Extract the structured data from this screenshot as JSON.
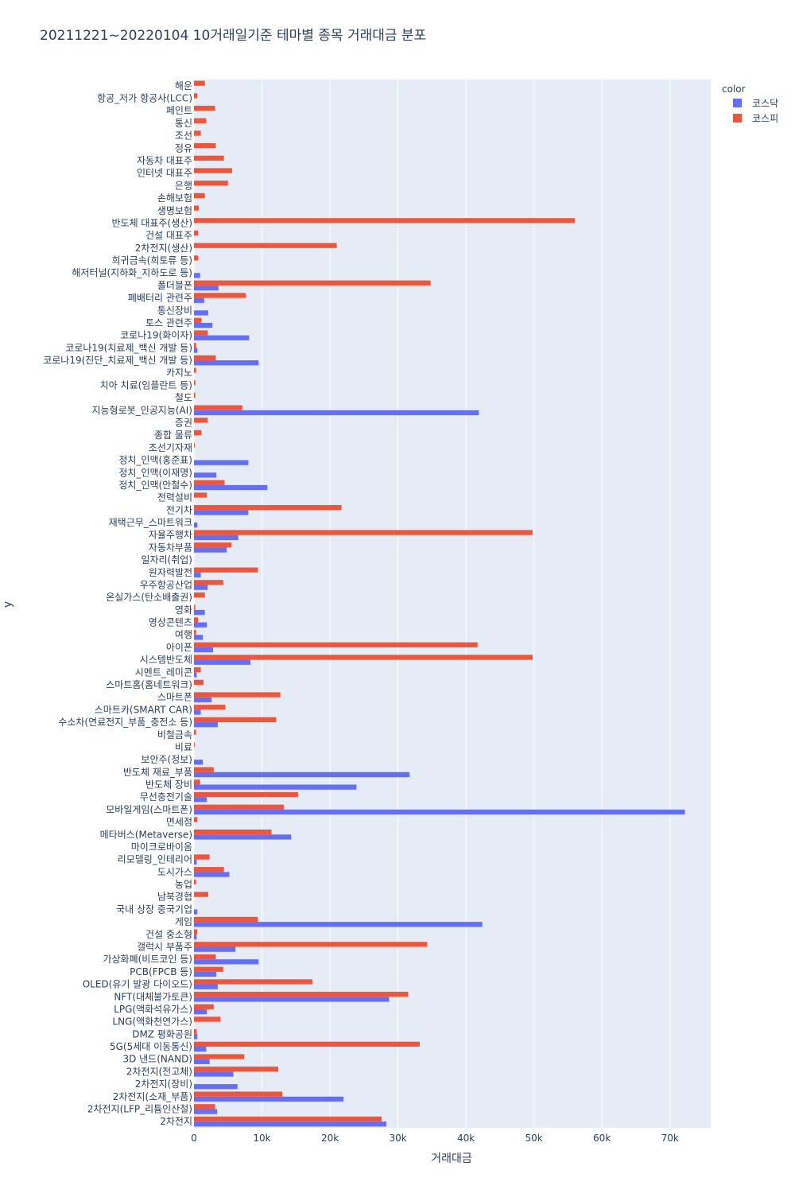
{
  "chart_data": {
    "type": "bar",
    "orientation": "horizontal",
    "barmode": "group",
    "title": "20211221~20220104 10거래일기준 테마별 종목 거래대금 분포",
    "xlabel": "거래대금",
    "ylabel": "y",
    "xlim": [
      0,
      76000
    ],
    "x_ticks": [
      0,
      10000,
      20000,
      30000,
      40000,
      50000,
      60000,
      70000
    ],
    "x_tick_labels": [
      "0",
      "10k",
      "20k",
      "30k",
      "40k",
      "50k",
      "60k",
      "70k"
    ],
    "grid": true,
    "legend": {
      "title": "color",
      "position": "top-right"
    },
    "colors": {
      "kosdaq": "#636efa",
      "kospi": "#ef553b",
      "plot_bg": "#e5ecf6",
      "grid": "#ffffff",
      "text": "#2a3f5f"
    },
    "categories": [
      "해운",
      "항공_저가 항공사(LCC)",
      "페인트",
      "통신",
      "조선",
      "정유",
      "자동차 대표주",
      "인터넷 대표주",
      "은행",
      "손해보험",
      "생명보험",
      "반도체 대표주(생산)",
      "건설 대표주",
      "2차전지(생산)",
      "희귀금속(희토류 등)",
      "해저터널(지하화_지하도로 등)",
      "폴더블폰",
      "폐배터리 관련주",
      "통신장비",
      "토스 관련주",
      "코로나19(화이자)",
      "코로나19(치료제_백신 개발 등)",
      "코로나19(진단_치료제_백신 개발 등)",
      "카지노",
      "치아 치료(임플란트 등)",
      "철도",
      "지능형로봇_인공지능(AI)",
      "증권",
      "종합 물류",
      "조선기자재",
      "정치_인맥(홍준표)",
      "정치_인맥(이재명)",
      "정치_인맥(안철수)",
      "전력설비",
      "전기차",
      "재택근무_스마트워크",
      "자율주행차",
      "자동차부품",
      "일자리(취업)",
      "원자력발전",
      "우주항공산업",
      "온실가스(탄소배출권)",
      "영화",
      "영상콘텐츠",
      "여행",
      "아이폰",
      "시스템반도체",
      "시멘트_레미콘",
      "스마트홈(홈네트워크)",
      "스마트폰",
      "스마트카(SMART CAR)",
      "수소차(연료전지_부품_충전소 등)",
      "비철금속",
      "비료",
      "보안주(정보)",
      "반도체 재료_부품",
      "반도체 장비",
      "무선충전기술",
      "모바일게임(스마트폰)",
      "면세점",
      "메타버스(Metaverse)",
      "마이크로바이옴",
      "리모델링_인테리어",
      "도시가스",
      "농업",
      "남북경협",
      "국내 상장 중국기업",
      "게임",
      "건설 중소형",
      "갤럭시 부품주",
      "가상화폐(비트코인 등)",
      "PCB(FPCB 등)",
      "OLED(유기 발광 다이오드)",
      "NFT(대체불가토큰)",
      "LPG(액화석유가스)",
      "LNG(액화천연가스)",
      "DMZ 평화공원",
      "5G(5세대 이동통신)",
      "3D 낸드(NAND)",
      "2차전지(전고체)",
      "2차전지(장비)",
      "2차전지(소재_부품)",
      "2차전지(LFP_리튬인산철)",
      "2차전지"
    ],
    "series": [
      {
        "name": "코스닥",
        "values": [
          0,
          0,
          0,
          0,
          0,
          0,
          0,
          0,
          0,
          0,
          0,
          0,
          0,
          0,
          0,
          900,
          3600,
          1500,
          2100,
          2700,
          8100,
          500,
          9500,
          0,
          0,
          0,
          41900,
          0,
          0,
          0,
          8000,
          3300,
          10800,
          0,
          8000,
          500,
          6500,
          4800,
          0,
          1000,
          2000,
          0,
          1600,
          1900,
          1300,
          2800,
          8300,
          400,
          0,
          2600,
          1000,
          3500,
          0,
          0,
          1300,
          31700,
          23900,
          1900,
          72200,
          0,
          14300,
          0,
          400,
          5200,
          0,
          0,
          500,
          42400,
          400,
          6100,
          9500,
          3300,
          3500,
          28700,
          1900,
          0,
          500,
          1800,
          2300,
          5800,
          6400,
          22000,
          3400,
          28300
        ]
      },
      {
        "name": "코스피",
        "values": [
          1600,
          500,
          3100,
          1800,
          1000,
          3200,
          4400,
          5600,
          5000,
          1600,
          700,
          56000,
          600,
          21000,
          600,
          0,
          34800,
          7600,
          0,
          1100,
          2000,
          300,
          3200,
          300,
          200,
          200,
          7100,
          2000,
          1100,
          100,
          0,
          0,
          4500,
          1900,
          21700,
          0,
          49800,
          5500,
          0,
          9400,
          4300,
          1600,
          200,
          600,
          300,
          41700,
          49800,
          1000,
          1400,
          12700,
          4600,
          12100,
          300,
          100,
          0,
          2900,
          900,
          15300,
          13200,
          500,
          11400,
          0,
          2300,
          4400,
          300,
          2100,
          0,
          9400,
          500,
          34300,
          3200,
          4300,
          17400,
          31500,
          2900,
          3900,
          400,
          33200,
          7400,
          12400,
          0,
          13000,
          3100,
          27600
        ]
      }
    ]
  }
}
